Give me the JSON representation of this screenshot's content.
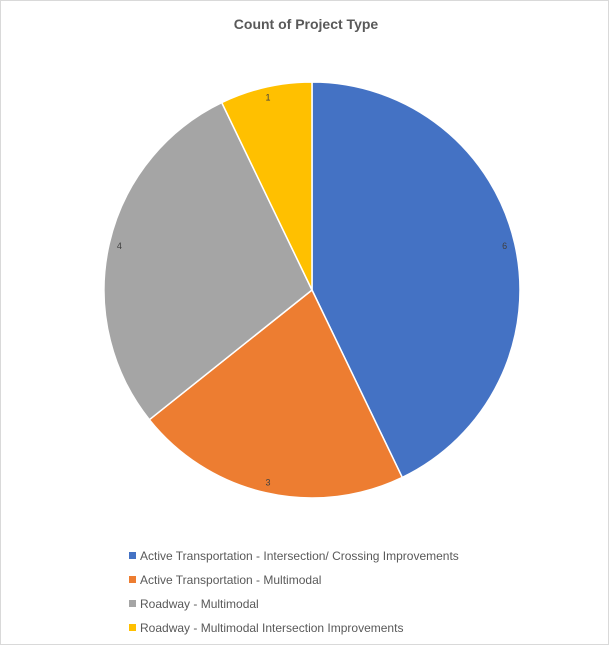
{
  "chart_data": {
    "type": "pie",
    "title": "Count of Project Type",
    "categories": [
      "Active Transportation - Intersection/ Crossing Improvements",
      "Active Transportation - Multimodal",
      "Roadway - Multimodal",
      "Roadway - Multimodal Intersection Improvements"
    ],
    "values": [
      6,
      3,
      4,
      1
    ],
    "data_labels": [
      "6",
      "3",
      "4",
      "1"
    ],
    "colors": [
      "#4472c4",
      "#ed7d31",
      "#a5a5a5",
      "#ffc000"
    ],
    "legend_position": "bottom",
    "start_angle": "top, clockwise"
  }
}
